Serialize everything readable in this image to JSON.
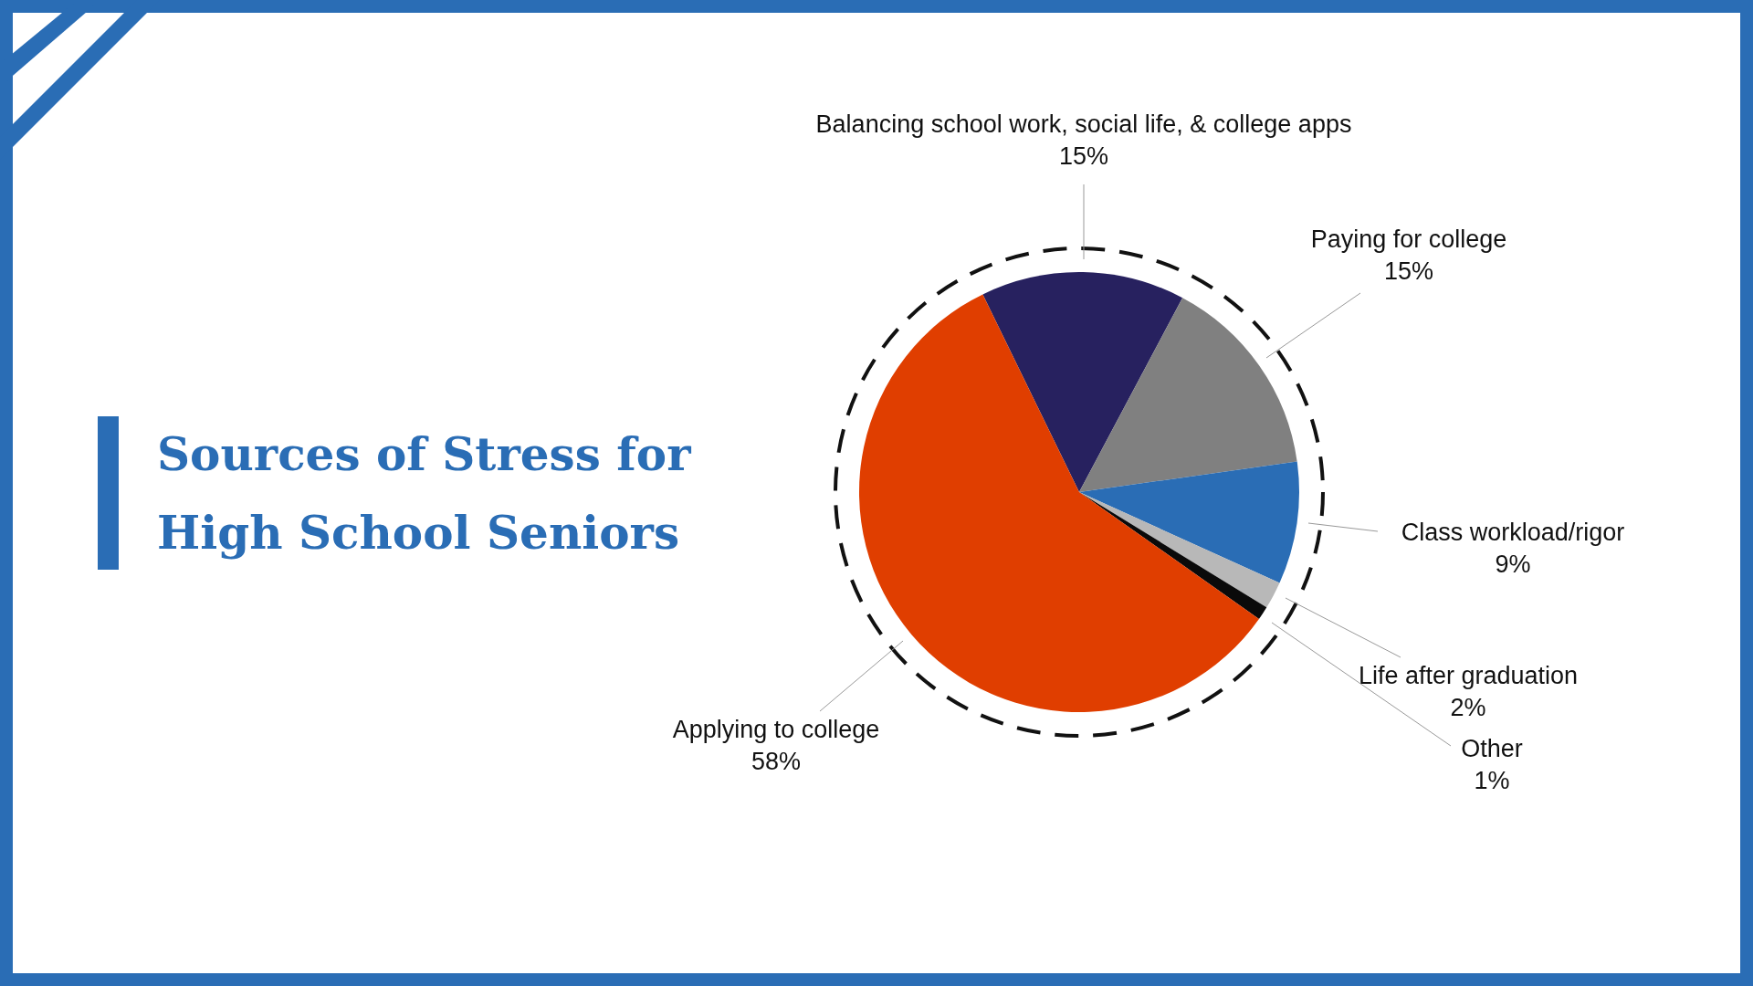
{
  "chart_data": {
    "type": "pie",
    "title": "Sources of Stress for High School Seniors",
    "categories": [
      "Balancing school work, social life, & college apps",
      "Paying for college",
      "Class workload/rigor",
      "Life after graduation",
      "Other",
      "Applying to college"
    ],
    "values": [
      15,
      15,
      9,
      2,
      1,
      58
    ],
    "value_labels": [
      "15%",
      "15%",
      "9%",
      "2%",
      "1%",
      "58%"
    ],
    "colors": [
      "#27215f",
      "#808080",
      "#2a6db5",
      "#b8b8b8",
      "#0a0a0a",
      "#e03e00"
    ],
    "legend": false
  }
}
